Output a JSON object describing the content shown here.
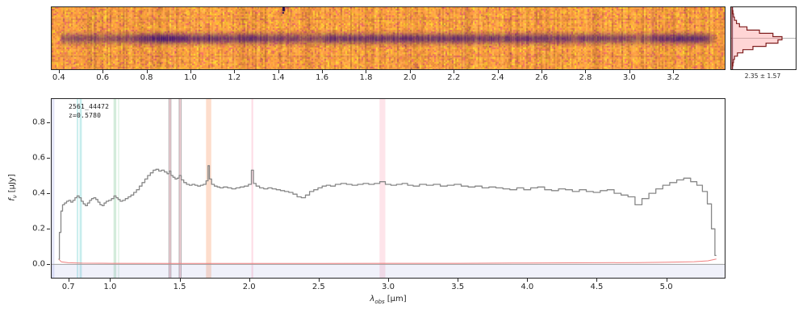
{
  "figure": {
    "background": "#ffffff",
    "text_color": "#262626"
  },
  "twod_panel": {
    "description": "2D spectrum cutout, plasma colormap, dark horizontal trace",
    "one_plus_z": 1.578,
    "xticks": {
      "values": [
        0.4,
        0.6,
        0.8,
        1.0,
        1.2,
        1.4,
        1.6,
        1.8,
        2.0,
        2.2,
        2.4,
        2.6,
        2.8,
        3.0,
        3.2
      ],
      "labels": [
        "0.4",
        "0.6",
        "0.8",
        "1.0",
        "1.2",
        "1.4",
        "1.6",
        "1.8",
        "2.0",
        "2.2",
        "2.4",
        "2.6",
        "2.8",
        "3.0",
        "3.2"
      ]
    },
    "marker_rest_um": 1.42,
    "colormap": "plasma",
    "bg_color": "#f89441",
    "yellow_color": "#fdc527",
    "red_color": "#e16462",
    "trace_color_rgb": [
      61,
      16,
      118
    ]
  },
  "profile_panel": {
    "stats_label": "2.35 ± 1.57",
    "values": [
      0.01,
      0.02,
      0.03,
      0.05,
      0.09,
      0.15,
      0.3,
      0.55,
      0.82,
      1.0,
      0.92,
      0.68,
      0.42,
      0.22,
      0.11,
      0.05,
      0.03,
      0.02,
      0.01
    ],
    "line_color": "#7f1d1d",
    "fill_color": "rgba(255,145,145,0.38)",
    "center_line_color": "#9a9a9a",
    "zero_line_color": "rgba(130,170,220,0.8)"
  },
  "chart_data": {
    "type": "line",
    "title": "",
    "xlabel": "λ_obs [μm]",
    "ylabel": "f_ν [μJy]",
    "xlabel_parts": {
      "main": "λ",
      "sub": "obs",
      "unit": "[μm]"
    },
    "ylabel_parts": {
      "main": "f",
      "sub": "ν",
      "unit": "[μJy]"
    },
    "xlim": [
      0.58,
      5.42
    ],
    "ylim": [
      -0.075,
      0.93
    ],
    "xticks": {
      "values": [
        0.7,
        1.0,
        1.5,
        2.0,
        2.5,
        3.0,
        3.5,
        4.0,
        4.5,
        5.0
      ],
      "labels": [
        "0.7",
        "1.0",
        "1.5",
        "2.0",
        "2.5",
        "3.0",
        "3.5",
        "4.0",
        "4.5",
        "5.0"
      ]
    },
    "yticks": {
      "values": [
        0.0,
        0.2,
        0.4,
        0.6,
        0.8
      ],
      "labels": [
        "0.0",
        "0.2",
        "0.4",
        "0.6",
        "0.8"
      ]
    },
    "annotations": {
      "id": "2561_44472",
      "redshift": "z=0.5780"
    },
    "zero_line": {
      "color": "#a0a0a0",
      "y": 0.0
    },
    "below_zero_fill": "rgba(140,150,215,0.13)",
    "line_bands": [
      {
        "name": "OII-3727",
        "x0": 0.58,
        "x1": 0.6,
        "color": "rgba(120,130,225,0.20)"
      },
      {
        "name": "Hbeta",
        "x0": 0.76,
        "x1": 0.772,
        "color": "rgba(0,175,175,0.20)"
      },
      {
        "name": "OIII-4959-5007",
        "x0": 0.781,
        "x1": 0.797,
        "color": "rgba(0,175,175,0.22)"
      },
      {
        "name": "Halpha",
        "x0": 1.025,
        "x1": 1.045,
        "color": "rgba(80,180,110,0.25)"
      },
      {
        "name": "SII-6724",
        "x0": 1.057,
        "x1": 1.066,
        "color": "rgba(80,180,110,0.16)"
      },
      {
        "name": "SIII-9069",
        "x0": 1.424,
        "x1": 1.438,
        "color": "rgba(250,115,140,0.28)",
        "edges": true
      },
      {
        "name": "SIII-9531",
        "x0": 1.497,
        "x1": 1.511,
        "color": "rgba(250,115,140,0.28)",
        "edges": true
      },
      {
        "name": "HeI-10830",
        "x0": 1.69,
        "x1": 1.728,
        "color": "rgba(250,150,95,0.32)"
      },
      {
        "name": "PaBeta",
        "x0": 2.017,
        "x1": 2.029,
        "color": "rgba(250,115,150,0.25)"
      },
      {
        "name": "PaAlpha",
        "x0": 2.938,
        "x1": 2.98,
        "color": "rgba(250,120,150,0.20)"
      }
    ],
    "series": [
      {
        "name": "flux",
        "color": "#878787",
        "line_width": 1.3,
        "style": "steps-mid",
        "points": [
          [
            0.63,
            0.03
          ],
          [
            0.642,
            0.18
          ],
          [
            0.652,
            0.3
          ],
          [
            0.665,
            0.335
          ],
          [
            0.68,
            0.345
          ],
          [
            0.695,
            0.355
          ],
          [
            0.71,
            0.36
          ],
          [
            0.725,
            0.35
          ],
          [
            0.74,
            0.36
          ],
          [
            0.755,
            0.375
          ],
          [
            0.77,
            0.385
          ],
          [
            0.785,
            0.375
          ],
          [
            0.8,
            0.355
          ],
          [
            0.815,
            0.34
          ],
          [
            0.83,
            0.33
          ],
          [
            0.845,
            0.345
          ],
          [
            0.86,
            0.36
          ],
          [
            0.875,
            0.37
          ],
          [
            0.89,
            0.375
          ],
          [
            0.905,
            0.365
          ],
          [
            0.92,
            0.35
          ],
          [
            0.935,
            0.335
          ],
          [
            0.95,
            0.33
          ],
          [
            0.965,
            0.345
          ],
          [
            0.98,
            0.355
          ],
          [
            1.0,
            0.36
          ],
          [
            1.02,
            0.37
          ],
          [
            1.036,
            0.385
          ],
          [
            1.05,
            0.375
          ],
          [
            1.065,
            0.365
          ],
          [
            1.08,
            0.355
          ],
          [
            1.1,
            0.36
          ],
          [
            1.12,
            0.37
          ],
          [
            1.14,
            0.38
          ],
          [
            1.16,
            0.39
          ],
          [
            1.18,
            0.405
          ],
          [
            1.2,
            0.42
          ],
          [
            1.22,
            0.44
          ],
          [
            1.24,
            0.46
          ],
          [
            1.26,
            0.48
          ],
          [
            1.28,
            0.5
          ],
          [
            1.3,
            0.515
          ],
          [
            1.32,
            0.53
          ],
          [
            1.34,
            0.535
          ],
          [
            1.36,
            0.525
          ],
          [
            1.38,
            0.53
          ],
          [
            1.4,
            0.52
          ],
          [
            1.42,
            0.51
          ],
          [
            1.431,
            0.525
          ],
          [
            1.445,
            0.5
          ],
          [
            1.46,
            0.49
          ],
          [
            1.475,
            0.48
          ],
          [
            1.49,
            0.485
          ],
          [
            1.504,
            0.5
          ],
          [
            1.52,
            0.475
          ],
          [
            1.54,
            0.46
          ],
          [
            1.56,
            0.45
          ],
          [
            1.58,
            0.445
          ],
          [
            1.6,
            0.45
          ],
          [
            1.62,
            0.445
          ],
          [
            1.64,
            0.44
          ],
          [
            1.66,
            0.445
          ],
          [
            1.68,
            0.45
          ],
          [
            1.7,
            0.47
          ],
          [
            1.709,
            0.555
          ],
          [
            1.72,
            0.48
          ],
          [
            1.74,
            0.45
          ],
          [
            1.76,
            0.44
          ],
          [
            1.78,
            0.435
          ],
          [
            1.8,
            0.43
          ],
          [
            1.83,
            0.435
          ],
          [
            1.86,
            0.43
          ],
          [
            1.89,
            0.425
          ],
          [
            1.92,
            0.43
          ],
          [
            1.95,
            0.435
          ],
          [
            1.98,
            0.44
          ],
          [
            2.01,
            0.45
          ],
          [
            2.023,
            0.53
          ],
          [
            2.04,
            0.455
          ],
          [
            2.06,
            0.44
          ],
          [
            2.09,
            0.43
          ],
          [
            2.12,
            0.425
          ],
          [
            2.15,
            0.43
          ],
          [
            2.18,
            0.425
          ],
          [
            2.21,
            0.42
          ],
          [
            2.24,
            0.415
          ],
          [
            2.27,
            0.41
          ],
          [
            2.3,
            0.405
          ],
          [
            2.33,
            0.395
          ],
          [
            2.36,
            0.38
          ],
          [
            2.39,
            0.375
          ],
          [
            2.42,
            0.39
          ],
          [
            2.45,
            0.41
          ],
          [
            2.48,
            0.42
          ],
          [
            2.51,
            0.43
          ],
          [
            2.54,
            0.44
          ],
          [
            2.57,
            0.445
          ],
          [
            2.6,
            0.44
          ],
          [
            2.64,
            0.45
          ],
          [
            2.68,
            0.455
          ],
          [
            2.72,
            0.45
          ],
          [
            2.76,
            0.445
          ],
          [
            2.8,
            0.45
          ],
          [
            2.84,
            0.455
          ],
          [
            2.88,
            0.45
          ],
          [
            2.92,
            0.455
          ],
          [
            2.959,
            0.465
          ],
          [
            3.0,
            0.45
          ],
          [
            3.04,
            0.445
          ],
          [
            3.08,
            0.45
          ],
          [
            3.12,
            0.455
          ],
          [
            3.16,
            0.445
          ],
          [
            3.2,
            0.44
          ],
          [
            3.25,
            0.45
          ],
          [
            3.3,
            0.445
          ],
          [
            3.35,
            0.45
          ],
          [
            3.4,
            0.44
          ],
          [
            3.45,
            0.445
          ],
          [
            3.5,
            0.45
          ],
          [
            3.55,
            0.44
          ],
          [
            3.6,
            0.435
          ],
          [
            3.65,
            0.44
          ],
          [
            3.7,
            0.43
          ],
          [
            3.75,
            0.435
          ],
          [
            3.8,
            0.43
          ],
          [
            3.85,
            0.425
          ],
          [
            3.9,
            0.42
          ],
          [
            3.95,
            0.43
          ],
          [
            4.0,
            0.42
          ],
          [
            4.05,
            0.43
          ],
          [
            4.1,
            0.435
          ],
          [
            4.15,
            0.42
          ],
          [
            4.2,
            0.415
          ],
          [
            4.25,
            0.425
          ],
          [
            4.3,
            0.42
          ],
          [
            4.35,
            0.41
          ],
          [
            4.4,
            0.42
          ],
          [
            4.45,
            0.41
          ],
          [
            4.5,
            0.405
          ],
          [
            4.55,
            0.415
          ],
          [
            4.6,
            0.42
          ],
          [
            4.65,
            0.4
          ],
          [
            4.7,
            0.39
          ],
          [
            4.75,
            0.38
          ],
          [
            4.8,
            0.335
          ],
          [
            4.85,
            0.37
          ],
          [
            4.9,
            0.4
          ],
          [
            4.95,
            0.425
          ],
          [
            5.0,
            0.445
          ],
          [
            5.05,
            0.46
          ],
          [
            5.1,
            0.475
          ],
          [
            5.15,
            0.485
          ],
          [
            5.2,
            0.465
          ],
          [
            5.24,
            0.445
          ],
          [
            5.28,
            0.41
          ],
          [
            5.31,
            0.34
          ],
          [
            5.34,
            0.2
          ],
          [
            5.36,
            0.05
          ]
        ]
      },
      {
        "name": "uncertainty",
        "color": "#f08080",
        "line_width": 1,
        "style": "line",
        "points": [
          [
            0.63,
            0.03
          ],
          [
            0.65,
            0.014
          ],
          [
            0.7,
            0.009
          ],
          [
            0.8,
            0.007
          ],
          [
            1.0,
            0.006
          ],
          [
            1.5,
            0.005
          ],
          [
            2.0,
            0.005
          ],
          [
            2.5,
            0.005
          ],
          [
            3.0,
            0.006
          ],
          [
            3.5,
            0.006
          ],
          [
            4.0,
            0.008
          ],
          [
            4.5,
            0.009
          ],
          [
            4.8,
            0.01
          ],
          [
            5.0,
            0.012
          ],
          [
            5.2,
            0.015
          ],
          [
            5.3,
            0.02
          ],
          [
            5.36,
            0.03
          ]
        ]
      }
    ]
  }
}
